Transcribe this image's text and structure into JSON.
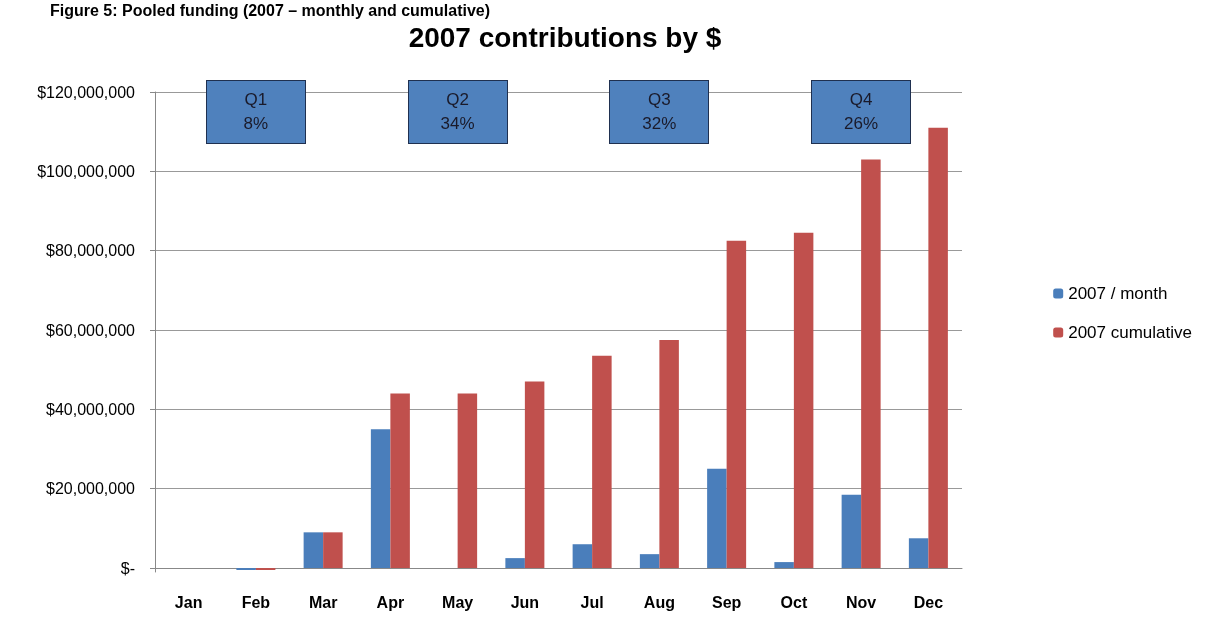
{
  "chart_data": {
    "type": "bar",
    "title": "2007 contributions by $",
    "categories": [
      "Jan",
      "Feb",
      "Mar",
      "Apr",
      "May",
      "Jun",
      "Jul",
      "Aug",
      "Sep",
      "Oct",
      "Nov",
      "Dec"
    ],
    "series": [
      {
        "name": "2007 / month",
        "color": "#4a7ebb",
        "values": [
          0,
          -500000,
          9000000,
          35000000,
          0,
          2500000,
          6000000,
          3500000,
          25000000,
          1500000,
          18500000,
          7500000
        ]
      },
      {
        "name": "2007 cumulative",
        "color": "#c0504d",
        "values": [
          0,
          -500000,
          9000000,
          44000000,
          44000000,
          47000000,
          53500000,
          57500000,
          82500000,
          84500000,
          103000000,
          111000000
        ]
      }
    ],
    "ylim": [
      -1000000,
      120000000
    ],
    "yticks": [
      {
        "value": 0,
        "label": "$-"
      },
      {
        "value": 20000000,
        "label": "$20,000,000"
      },
      {
        "value": 40000000,
        "label": "$40,000,000"
      },
      {
        "value": 60000000,
        "label": "$60,000,000"
      },
      {
        "value": 80000000,
        "label": "$80,000,000"
      },
      {
        "value": 100000000,
        "label": "$100,000,000"
      },
      {
        "value": 120000000,
        "label": "$120,000,000"
      }
    ],
    "annotations": [
      "Figure 5: Pooled funding (2007 – monthly and cumulative)",
      "Q1\n8%",
      "Q2\n34%",
      "Q3\n32%",
      "Q4\n26%"
    ],
    "grid": "y",
    "legend": "right"
  }
}
